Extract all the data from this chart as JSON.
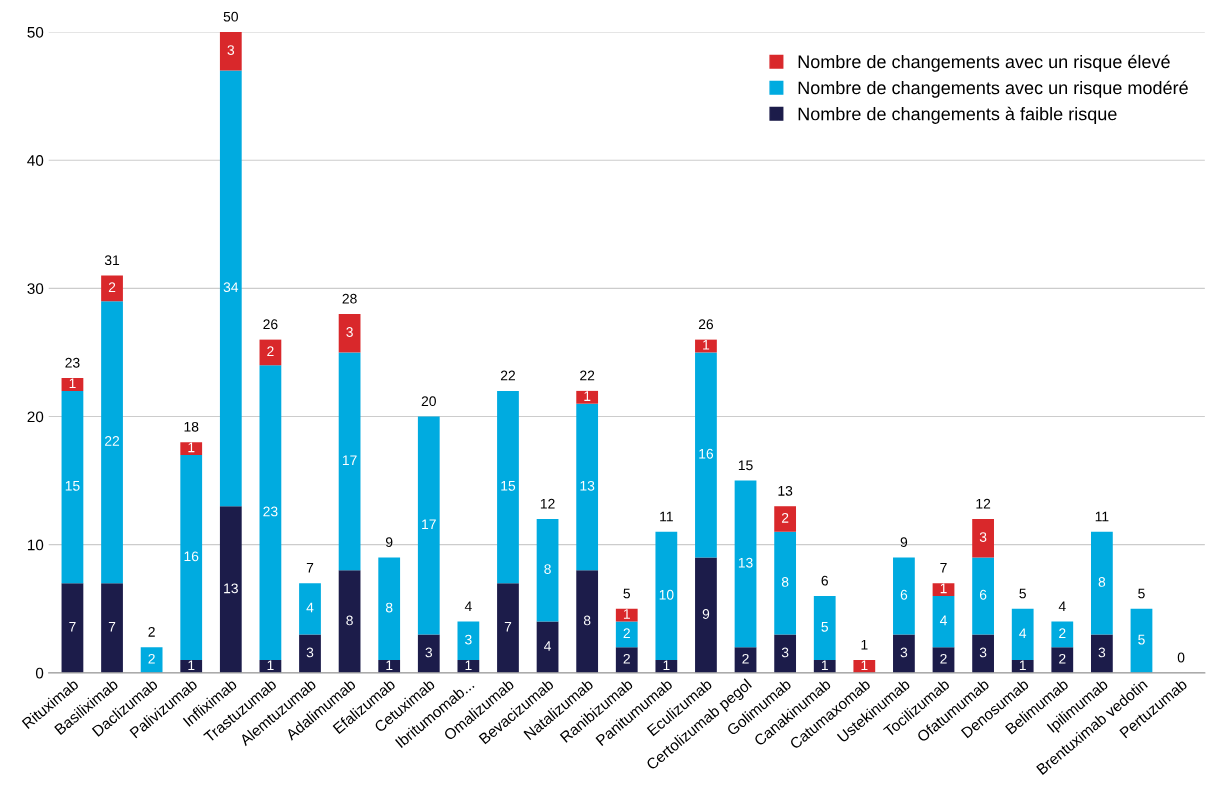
{
  "chart_data": {
    "type": "bar",
    "stacked": true,
    "categories": [
      "Rituximab",
      "Basiliximab",
      "Daclizumab",
      "Palivizumab",
      "Infliximab",
      "Trastuzumab",
      "Alemtuzumab",
      "Adalimumab",
      "Efalizumab",
      "Cetuximab",
      "Ibritumomab...",
      "Omalizumab",
      "Bevacizumab",
      "Natalizumab",
      "Ranibizumab",
      "Panitumumab",
      "Eculizumab",
      "Certolizumab pegol",
      "Golimumab",
      "Canakinumab",
      "Catumaxomab",
      "Ustekinumab",
      "Tocilizumab",
      "Ofatumumab",
      "Denosumab",
      "Belimumab",
      "Ipilimumab",
      "Brentuximab vedotin",
      "Pertuzumab"
    ],
    "series": [
      {
        "name": "Nombre de changements à faible risque",
        "color": "#1c1c4a",
        "values": [
          7,
          7,
          0,
          1,
          13,
          1,
          3,
          8,
          1,
          3,
          1,
          7,
          4,
          8,
          2,
          1,
          9,
          2,
          3,
          1,
          0,
          3,
          2,
          3,
          1,
          2,
          3,
          0,
          0
        ],
        "value_labels": [
          "7",
          "7",
          null,
          "1",
          "13",
          "1",
          "3",
          "8",
          "1",
          "3",
          "1",
          "7",
          "4",
          "8",
          "2",
          "1",
          "9",
          "2",
          "3",
          "1",
          null,
          "3",
          "2",
          "3",
          "1",
          "2",
          "3",
          null,
          null
        ]
      },
      {
        "name": "Nombre de changements avec un risque modéré",
        "color": "#00abe0",
        "values": [
          15,
          22,
          2,
          16,
          34,
          23,
          4,
          17,
          8,
          17,
          3,
          15,
          8,
          13,
          2,
          10,
          16,
          13,
          8,
          5,
          0,
          6,
          4,
          6,
          4,
          2,
          8,
          5,
          0
        ],
        "value_labels": [
          "15",
          "22",
          "2",
          "16",
          "34",
          "23",
          "4",
          "17",
          "8",
          "17",
          "3",
          "15",
          "8",
          "13",
          "2",
          "10",
          "16",
          "13",
          "8",
          "5",
          null,
          "6",
          "4",
          "6",
          "4",
          "2",
          "8",
          "5",
          null
        ]
      },
      {
        "name": "Nombre de changements avec un risque élevé",
        "color": "#d9282b",
        "values": [
          1,
          2,
          0,
          1,
          3,
          2,
          0,
          3,
          0,
          0,
          0,
          0,
          0,
          1,
          1,
          0,
          1,
          0,
          2,
          0,
          1,
          0,
          1,
          3,
          0,
          0,
          0,
          0,
          0
        ],
        "value_labels": [
          "1",
          "2",
          null,
          "1",
          "3",
          "2",
          null,
          "3",
          null,
          null,
          null,
          null,
          null,
          "1",
          "1",
          null,
          "1",
          null,
          "2",
          null,
          "1",
          null,
          "1",
          "3",
          null,
          null,
          null,
          null,
          null
        ]
      }
    ],
    "totals": [
      "23",
      "31",
      "2",
      "18",
      "50",
      "26",
      "7",
      "28",
      "9",
      "20",
      "4",
      "22",
      "12",
      "22",
      "5",
      "11",
      "26",
      "15",
      "13",
      "6",
      "1",
      "9",
      "7",
      "12",
      "5",
      "4",
      "11",
      "5",
      "0"
    ],
    "ylim": [
      0,
      50
    ],
    "yticks": [
      0,
      10,
      20,
      30,
      40,
      50
    ],
    "grid": "y",
    "legend": "top right"
  }
}
